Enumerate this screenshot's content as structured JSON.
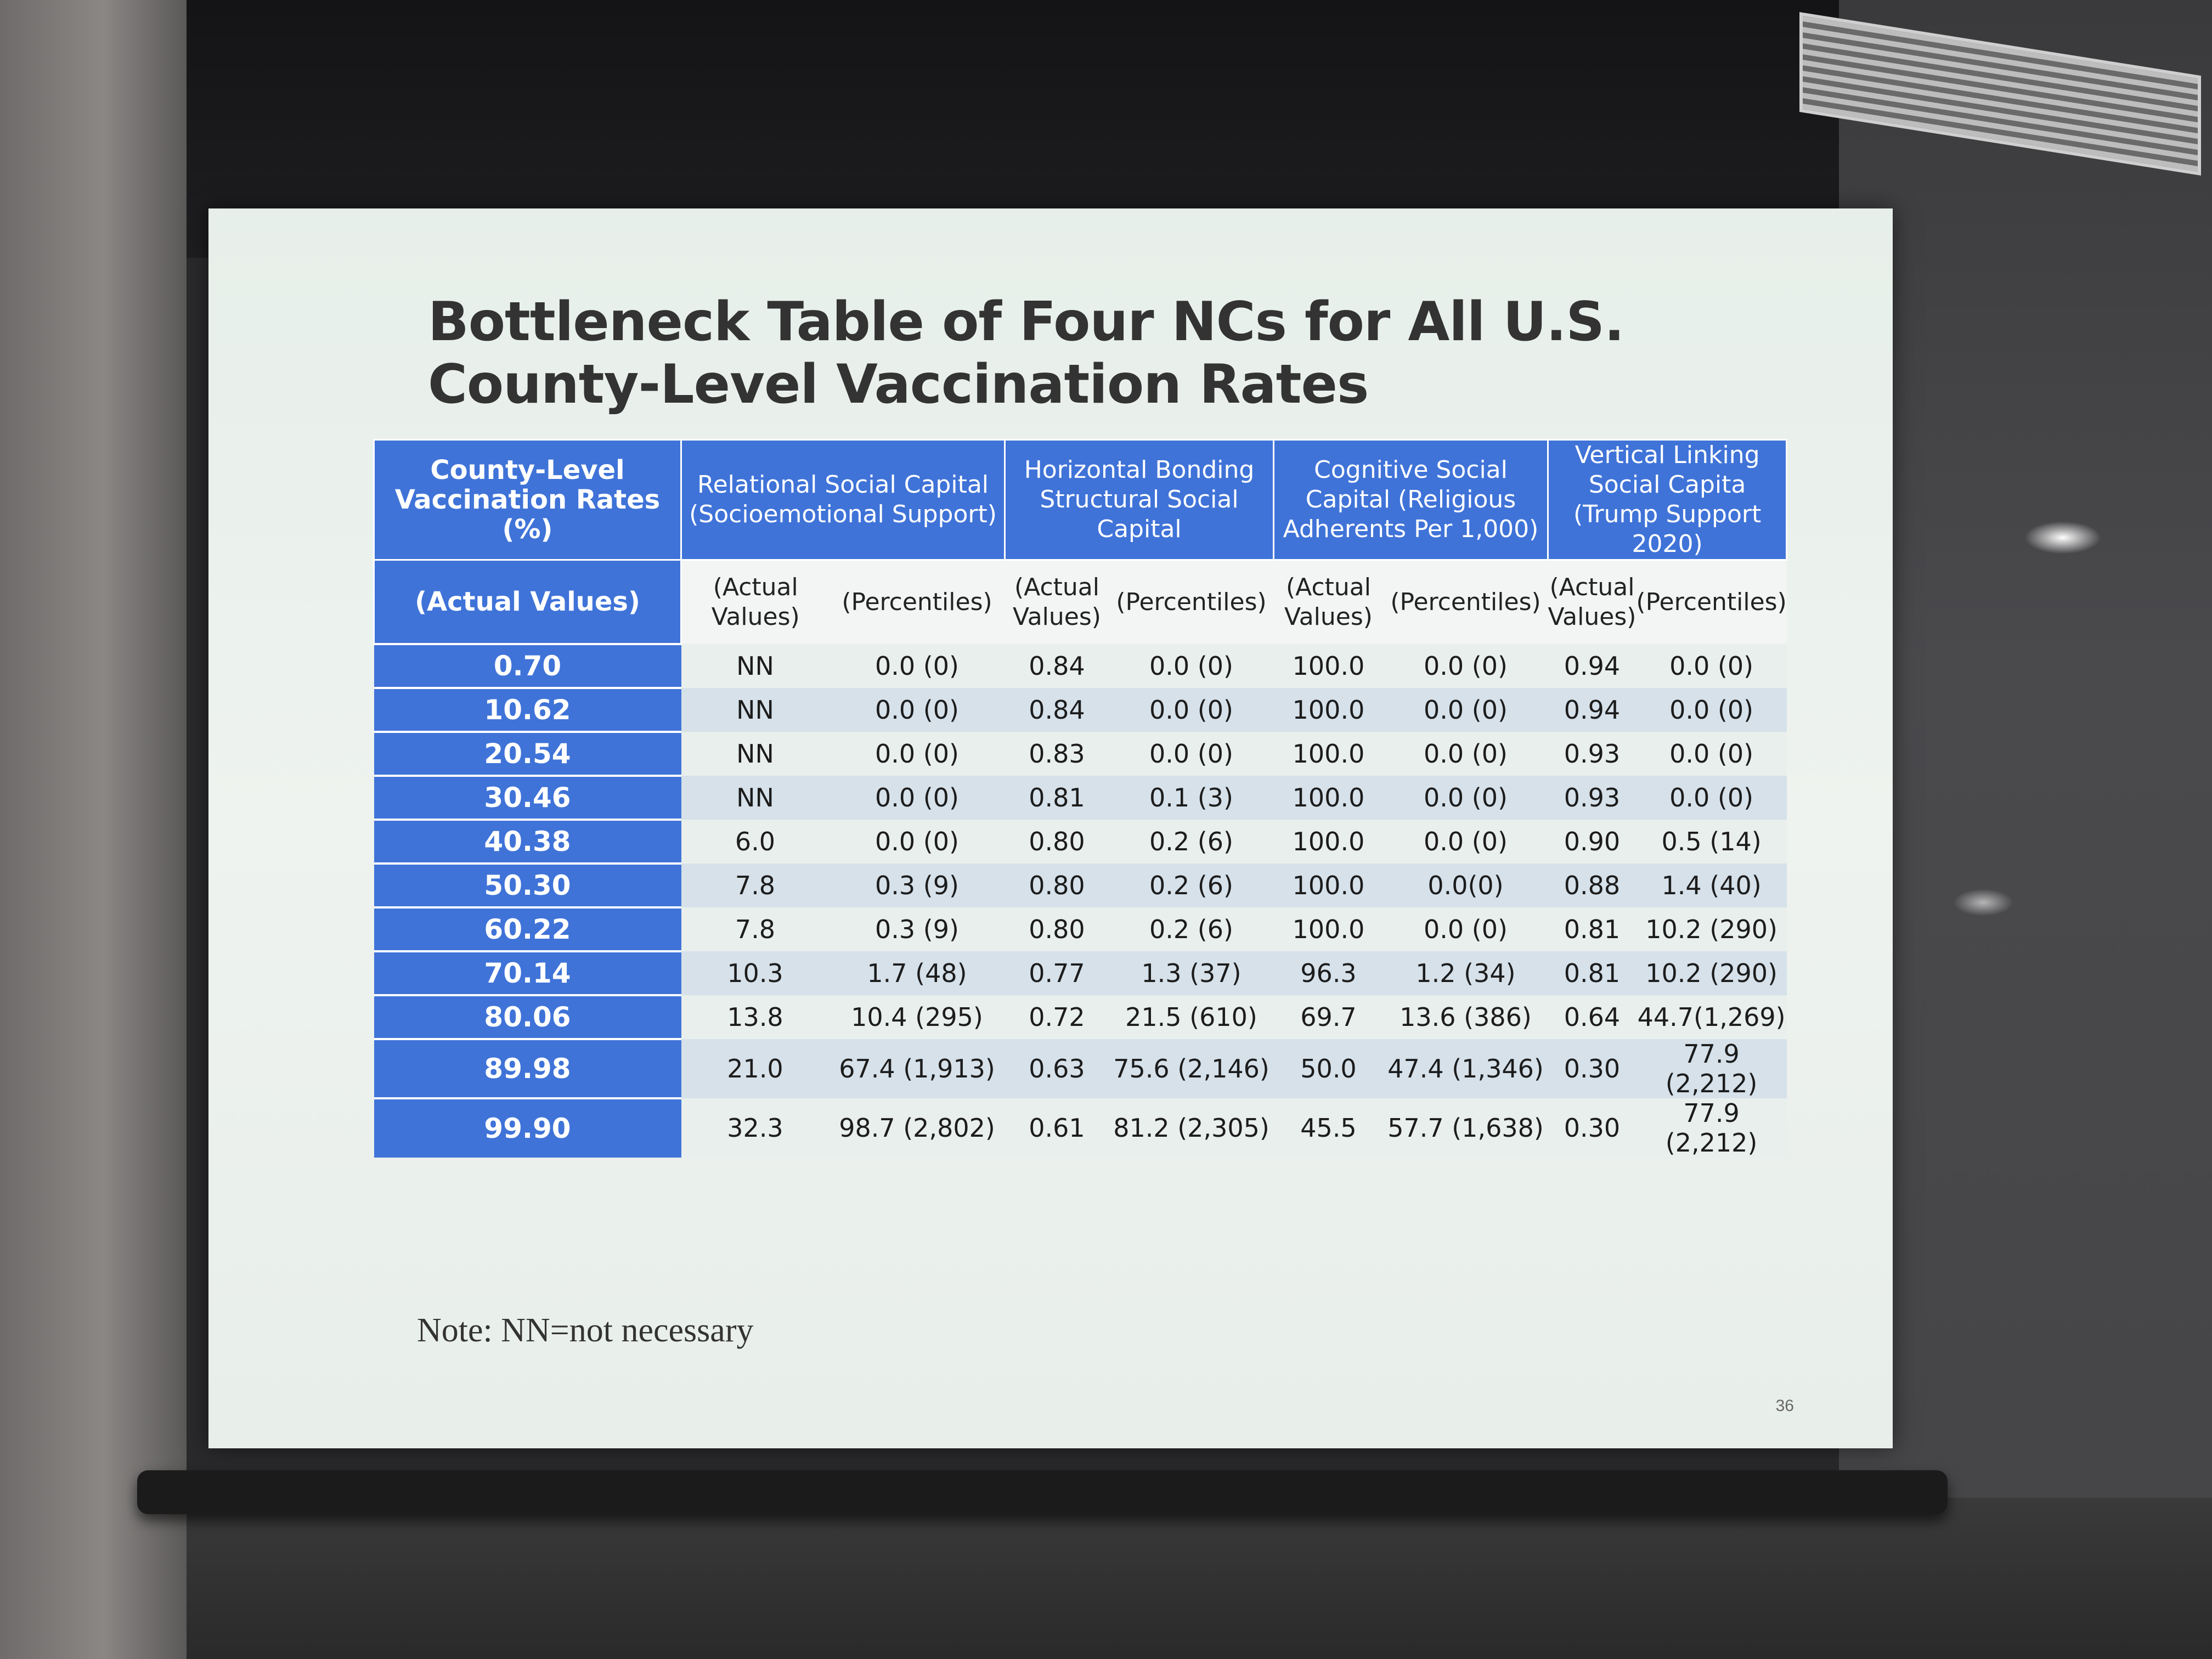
{
  "slide": {
    "title": "Bottleneck Table of Four NCs for All U.S. County-Level Vaccination Rates",
    "note": "Note: NN=not necessary",
    "page_number": "36"
  },
  "table": {
    "group_headers": [
      "County-Level Vaccination Rates (%)",
      "Relational Social Capital (Socioemotional Support)",
      "Horizontal Bonding Structural Social Capital",
      "Cognitive Social Capital (Religious Adherents Per 1,000)",
      "Vertical Linking Social Capita (Trump Support 2020)"
    ],
    "sub_headers": [
      "(Actual Values)",
      "(Actual Values)",
      "(Percentiles)",
      "(Actual Values)",
      "(Percentiles)",
      "(Actual Values)",
      "(Percentiles)",
      "(Actual Values)",
      "(Percentiles)"
    ],
    "rows": [
      [
        "0.70",
        "NN",
        "0.0 (0)",
        "0.84",
        "0.0 (0)",
        "100.0",
        "0.0 (0)",
        "0.94",
        "0.0 (0)"
      ],
      [
        "10.62",
        "NN",
        "0.0 (0)",
        "0.84",
        "0.0 (0)",
        "100.0",
        "0.0 (0)",
        "0.94",
        "0.0 (0)"
      ],
      [
        "20.54",
        "NN",
        "0.0 (0)",
        "0.83",
        "0.0 (0)",
        "100.0",
        "0.0 (0)",
        "0.93",
        "0.0 (0)"
      ],
      [
        "30.46",
        "NN",
        "0.0 (0)",
        "0.81",
        "0.1 (3)",
        "100.0",
        "0.0 (0)",
        "0.93",
        "0.0 (0)"
      ],
      [
        "40.38",
        "6.0",
        "0.0 (0)",
        "0.80",
        "0.2 (6)",
        "100.0",
        "0.0 (0)",
        "0.90",
        "0.5 (14)"
      ],
      [
        "50.30",
        "7.8",
        "0.3 (9)",
        "0.80",
        "0.2 (6)",
        "100.0",
        "0.0(0)",
        "0.88",
        "1.4 (40)"
      ],
      [
        "60.22",
        "7.8",
        "0.3 (9)",
        "0.80",
        "0.2 (6)",
        "100.0",
        "0.0 (0)",
        "0.81",
        "10.2 (290)"
      ],
      [
        "70.14",
        "10.3",
        "1.7 (48)",
        "0.77",
        "1.3 (37)",
        "96.3",
        "1.2 (34)",
        "0.81",
        "10.2 (290)"
      ],
      [
        "80.06",
        "13.8",
        "10.4 (295)",
        "0.72",
        "21.5 (610)",
        "69.7",
        "13.6 (386)",
        "0.64",
        "44.7(1,269)"
      ],
      [
        "89.98",
        "21.0",
        "67.4 (1,913)",
        "0.63",
        "75.6 (2,146)",
        "50.0",
        "47.4 (1,346)",
        "0.30",
        "77.9 (2,212)"
      ],
      [
        "99.90",
        "32.3",
        "98.7 (2,802)",
        "0.61",
        "81.2 (2,305)",
        "45.5",
        "57.7 (1,638)",
        "0.30",
        "77.9 (2,212)"
      ]
    ]
  }
}
